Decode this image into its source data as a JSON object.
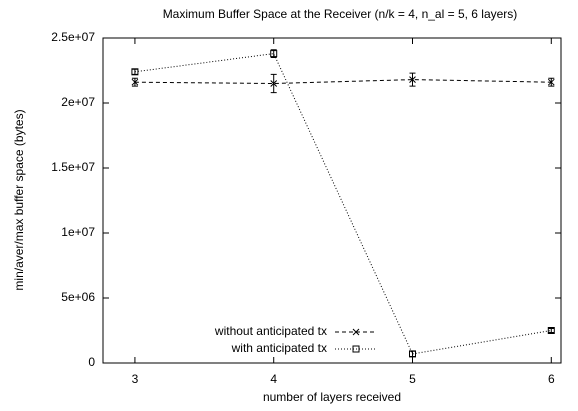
{
  "chart_data": {
    "type": "line",
    "title": "Maximum Buffer Space at the Receiver (n/k = 4, n_al = 5, 6 layers)",
    "xlabel": "number of layers received",
    "ylabel": "min/aver/max buffer space (bytes)",
    "x": [
      3,
      4,
      5,
      6
    ],
    "series": [
      {
        "name": "without anticipated tx",
        "color": "#000000",
        "line_style": "dashed",
        "marker": "x",
        "values": [
          21600000,
          21500000,
          21800000,
          21600000
        ],
        "errors": [
          300000,
          700000,
          500000,
          300000
        ]
      },
      {
        "name": "with anticipated tx",
        "color": "#000000",
        "line_style": "dotted",
        "marker": "square",
        "values": [
          22400000,
          23800000,
          700000,
          2500000
        ],
        "errors": [
          200000,
          300000,
          200000,
          150000
        ]
      }
    ],
    "xlim": [
      2.77,
      6.07
    ],
    "xticks": [
      3,
      4,
      5,
      6
    ],
    "ylim": [
      0,
      25000000
    ],
    "yticks": [
      0,
      {
        "value": 5000000,
        "label": "5e+06"
      },
      {
        "value": 10000000,
        "label": "1e+07"
      },
      {
        "value": 15000000,
        "label": "1.5e+07"
      },
      {
        "value": 20000000,
        "label": "2e+07"
      },
      {
        "value": 25000000,
        "label": "2.5e+07"
      }
    ],
    "legend": "lower center",
    "grid": false
  }
}
